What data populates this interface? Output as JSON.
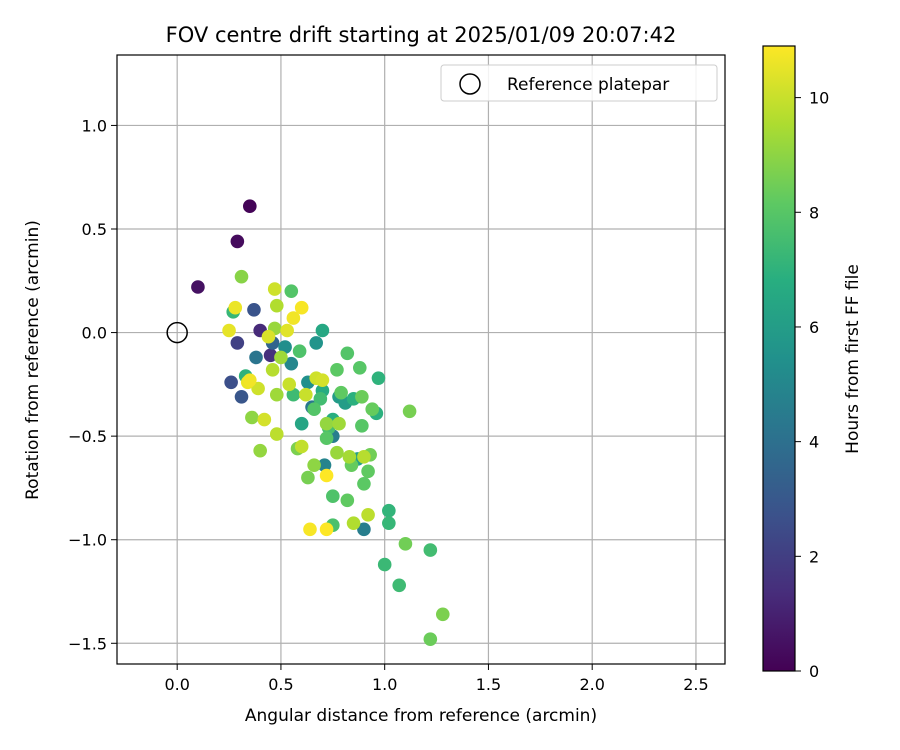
{
  "chart_data": {
    "type": "scatter",
    "title": "FOV centre drift starting at 2025/01/09 20:07:42",
    "xlabel": "Angular distance from reference (arcmin)",
    "ylabel": "Rotation from reference (arcmin)",
    "xlim": [
      -0.29,
      2.64
    ],
    "ylim": [
      -1.6,
      1.34
    ],
    "xticks": [
      0.0,
      0.5,
      1.0,
      1.5,
      2.0,
      2.5
    ],
    "xtick_labels": [
      "0.0",
      "0.5",
      "1.0",
      "1.5",
      "2.0",
      "2.5"
    ],
    "yticks": [
      1.0,
      0.5,
      0.0,
      -0.5,
      -1.0,
      -1.5
    ],
    "ytick_labels": [
      "1.0",
      "0.5",
      "0.0",
      "−0.5",
      "−1.0",
      "−1.5"
    ],
    "grid": true,
    "legend": {
      "position": "top-right",
      "entries": [
        "Reference platepar"
      ]
    },
    "reference_point": {
      "x": 0.0,
      "y": 0.0
    },
    "colorbar": {
      "label": "Hours from first FF file",
      "range": [
        0,
        10.9
      ],
      "ticks": [
        0,
        2,
        4,
        6,
        8,
        10
      ],
      "tick_labels": [
        "0",
        "2",
        "4",
        "6",
        "8",
        "10"
      ],
      "colormap": "viridis"
    },
    "points": [
      {
        "x": 0.35,
        "y": 0.61,
        "h": 0.1
      },
      {
        "x": 0.29,
        "y": 0.44,
        "h": 0.3
      },
      {
        "x": 0.1,
        "y": 0.22,
        "h": 0.5
      },
      {
        "x": 0.4,
        "y": 0.01,
        "h": 1.3
      },
      {
        "x": 0.45,
        "y": -0.11,
        "h": 1.5
      },
      {
        "x": 0.29,
        "y": -0.05,
        "h": 2.1
      },
      {
        "x": 0.37,
        "y": 0.11,
        "h": 2.8
      },
      {
        "x": 0.26,
        "y": -0.24,
        "h": 2.6
      },
      {
        "x": 0.31,
        "y": -0.31,
        "h": 2.9
      },
      {
        "x": 0.46,
        "y": -0.05,
        "h": 3.5
      },
      {
        "x": 0.38,
        "y": -0.12,
        "h": 4.2
      },
      {
        "x": 0.65,
        "y": -0.36,
        "h": 4.3
      },
      {
        "x": 0.75,
        "y": -0.5,
        "h": 4.6
      },
      {
        "x": 0.9,
        "y": -0.95,
        "h": 4.6
      },
      {
        "x": 0.71,
        "y": -0.64,
        "h": 4.9
      },
      {
        "x": 0.55,
        "y": -0.15,
        "h": 5.0
      },
      {
        "x": 0.52,
        "y": -0.07,
        "h": 5.3
      },
      {
        "x": 0.63,
        "y": -0.24,
        "h": 5.4
      },
      {
        "x": 0.67,
        "y": -0.05,
        "h": 5.6
      },
      {
        "x": 0.78,
        "y": -0.31,
        "h": 5.9
      },
      {
        "x": 0.81,
        "y": -0.34,
        "h": 6.0
      },
      {
        "x": 0.87,
        "y": -0.61,
        "h": 6.2
      },
      {
        "x": 0.7,
        "y": 0.01,
        "h": 6.5
      },
      {
        "x": 0.6,
        "y": -0.44,
        "h": 6.4
      },
      {
        "x": 0.7,
        "y": -0.28,
        "h": 6.7
      },
      {
        "x": 0.75,
        "y": -0.42,
        "h": 6.8
      },
      {
        "x": 0.85,
        "y": -0.32,
        "h": 6.9
      },
      {
        "x": 0.96,
        "y": -0.39,
        "h": 6.9
      },
      {
        "x": 0.97,
        "y": -0.22,
        "h": 7.0
      },
      {
        "x": 1.02,
        "y": -0.86,
        "h": 7.1
      },
      {
        "x": 1.02,
        "y": -0.92,
        "h": 7.2
      },
      {
        "x": 1.0,
        "y": -1.12,
        "h": 7.3
      },
      {
        "x": 1.07,
        "y": -1.22,
        "h": 7.4
      },
      {
        "x": 1.22,
        "y": -1.05,
        "h": 7.5
      },
      {
        "x": 0.33,
        "y": -0.21,
        "h": 7.0
      },
      {
        "x": 0.27,
        "y": 0.1,
        "h": 7.2
      },
      {
        "x": 0.56,
        "y": -0.3,
        "h": 7.4
      },
      {
        "x": 0.69,
        "y": -0.32,
        "h": 7.5
      },
      {
        "x": 0.73,
        "y": -0.46,
        "h": 7.6
      },
      {
        "x": 0.75,
        "y": -0.93,
        "h": 7.7
      },
      {
        "x": 0.75,
        "y": -0.79,
        "h": 7.8
      },
      {
        "x": 0.82,
        "y": -0.1,
        "h": 7.9
      },
      {
        "x": 0.88,
        "y": -0.17,
        "h": 8.0
      },
      {
        "x": 0.89,
        "y": -0.45,
        "h": 8.0
      },
      {
        "x": 0.9,
        "y": -0.73,
        "h": 8.1
      },
      {
        "x": 0.92,
        "y": -0.67,
        "h": 8.2
      },
      {
        "x": 0.94,
        "y": -0.37,
        "h": 8.3
      },
      {
        "x": 1.1,
        "y": -1.02,
        "h": 8.5
      },
      {
        "x": 1.12,
        "y": -0.38,
        "h": 8.6
      },
      {
        "x": 1.22,
        "y": -1.48,
        "h": 8.4
      },
      {
        "x": 1.28,
        "y": -1.36,
        "h": 8.7
      },
      {
        "x": 0.55,
        "y": 0.2,
        "h": 7.9
      },
      {
        "x": 0.59,
        "y": -0.09,
        "h": 7.8
      },
      {
        "x": 0.66,
        "y": -0.37,
        "h": 7.9
      },
      {
        "x": 0.72,
        "y": -0.51,
        "h": 8.0
      },
      {
        "x": 0.77,
        "y": -0.18,
        "h": 8.1
      },
      {
        "x": 0.79,
        "y": -0.29,
        "h": 8.2
      },
      {
        "x": 0.82,
        "y": -0.81,
        "h": 8.2
      },
      {
        "x": 0.84,
        "y": -0.64,
        "h": 8.3
      },
      {
        "x": 0.89,
        "y": -0.31,
        "h": 8.4
      },
      {
        "x": 0.93,
        "y": -0.59,
        "h": 8.5
      },
      {
        "x": 0.63,
        "y": -0.7,
        "h": 8.6
      },
      {
        "x": 0.58,
        "y": -0.56,
        "h": 8.7
      },
      {
        "x": 0.31,
        "y": 0.27,
        "h": 8.9
      },
      {
        "x": 0.36,
        "y": -0.41,
        "h": 9.0
      },
      {
        "x": 0.4,
        "y": -0.57,
        "h": 9.1
      },
      {
        "x": 0.47,
        "y": 0.02,
        "h": 9.2
      },
      {
        "x": 0.48,
        "y": -0.3,
        "h": 9.3
      },
      {
        "x": 0.5,
        "y": -0.12,
        "h": 9.3
      },
      {
        "x": 0.66,
        "y": -0.64,
        "h": 9.0
      },
      {
        "x": 0.72,
        "y": -0.44,
        "h": 9.1
      },
      {
        "x": 0.77,
        "y": -0.58,
        "h": 9.2
      },
      {
        "x": 0.78,
        "y": -0.44,
        "h": 9.3
      },
      {
        "x": 0.83,
        "y": -0.6,
        "h": 9.4
      },
      {
        "x": 0.85,
        "y": -0.92,
        "h": 9.6
      },
      {
        "x": 0.9,
        "y": -0.6,
        "h": 9.7
      },
      {
        "x": 0.92,
        "y": -0.88,
        "h": 9.8
      },
      {
        "x": 0.48,
        "y": 0.13,
        "h": 9.6
      },
      {
        "x": 0.46,
        "y": -0.18,
        "h": 9.7
      },
      {
        "x": 0.48,
        "y": -0.49,
        "h": 9.8
      },
      {
        "x": 0.6,
        "y": -0.55,
        "h": 9.9
      },
      {
        "x": 0.62,
        "y": -0.3,
        "h": 10.0
      },
      {
        "x": 0.54,
        "y": -0.25,
        "h": 10.0
      },
      {
        "x": 0.67,
        "y": -0.22,
        "h": 10.1
      },
      {
        "x": 0.7,
        "y": -0.23,
        "h": 10.2
      },
      {
        "x": 0.39,
        "y": -0.27,
        "h": 10.1
      },
      {
        "x": 0.42,
        "y": -0.42,
        "h": 10.2
      },
      {
        "x": 0.44,
        "y": -0.02,
        "h": 10.3
      },
      {
        "x": 0.47,
        "y": 0.21,
        "h": 10.1
      },
      {
        "x": 0.53,
        "y": 0.01,
        "h": 10.4
      },
      {
        "x": 0.25,
        "y": 0.01,
        "h": 10.5
      },
      {
        "x": 0.28,
        "y": 0.12,
        "h": 10.6
      },
      {
        "x": 0.34,
        "y": -0.24,
        "h": 10.6
      },
      {
        "x": 0.35,
        "y": -0.23,
        "h": 10.7
      },
      {
        "x": 0.56,
        "y": 0.07,
        "h": 10.7
      },
      {
        "x": 0.6,
        "y": 0.12,
        "h": 10.8
      },
      {
        "x": 0.64,
        "y": -0.95,
        "h": 10.8
      },
      {
        "x": 0.72,
        "y": -0.95,
        "h": 10.9
      },
      {
        "x": 0.72,
        "y": -0.69,
        "h": 10.9
      }
    ]
  }
}
